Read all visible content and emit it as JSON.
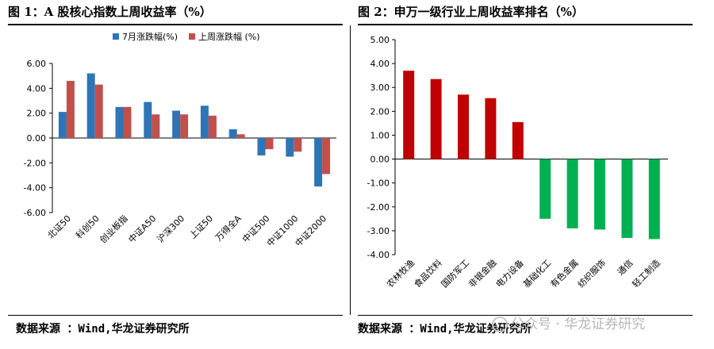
{
  "page": {
    "left_title": "图 1：A 股核心指数上周收益率（%）",
    "right_title": "图 2：申万一级行业上周收益率排名（%）",
    "left_source": "数据来源 ：Wind,华龙证券研究所",
    "right_source": "数据来源 ：Wind,华龙证券研究所",
    "watermark": "公众号 · 华龙证券研究"
  },
  "chart_data": [
    {
      "type": "bar",
      "title": "图 1：A 股核心指数上周收益率（%）",
      "categories": [
        "北证50",
        "科创50",
        "创业板指",
        "中证A50",
        "沪深300",
        "上证50",
        "万得全A",
        "中证500",
        "中证1000",
        "中证2000"
      ],
      "series": [
        {
          "name": "7月涨跌幅(%)",
          "color": "#2E75B6",
          "values": [
            2.1,
            5.2,
            2.5,
            2.9,
            2.2,
            2.6,
            0.7,
            -1.4,
            -1.5,
            -3.9
          ]
        },
        {
          "name": "上周涨跌幅 (%)",
          "color": "#C0504D",
          "values": [
            4.6,
            4.3,
            2.5,
            1.9,
            1.9,
            1.8,
            0.3,
            -0.9,
            -1.1,
            -2.9
          ]
        }
      ],
      "ylim": [
        -6,
        6
      ],
      "yticks": [
        "6.00",
        "4.00",
        "2.00",
        "0.00",
        "-2.00",
        "-4.00",
        "-6.00"
      ],
      "legend": "top-center",
      "xlabel": "",
      "ylabel": ""
    },
    {
      "type": "bar",
      "title": "图 2：申万一级行业上周收益率排名（%）",
      "categories": [
        "农林牧渔",
        "食品饮料",
        "国防军工",
        "非银金融",
        "电力设备",
        "基础化工",
        "有色金属",
        "纺织服饰",
        "通信",
        "轻工制造"
      ],
      "series": [
        {
          "name": "上周收益率",
          "values": [
            3.7,
            3.35,
            2.7,
            2.55,
            1.55,
            -2.5,
            -2.9,
            -2.95,
            -3.3,
            -3.35
          ]
        }
      ],
      "positive_color": "#C00000",
      "negative_color": "#00B050",
      "ylim": [
        -4,
        5
      ],
      "yticks": [
        "5.00",
        "4.00",
        "3.00",
        "2.00",
        "1.00",
        "0.00",
        "-1.00",
        "-2.00",
        "-3.00",
        "-4.00"
      ],
      "xlabel": "",
      "ylabel": ""
    }
  ]
}
